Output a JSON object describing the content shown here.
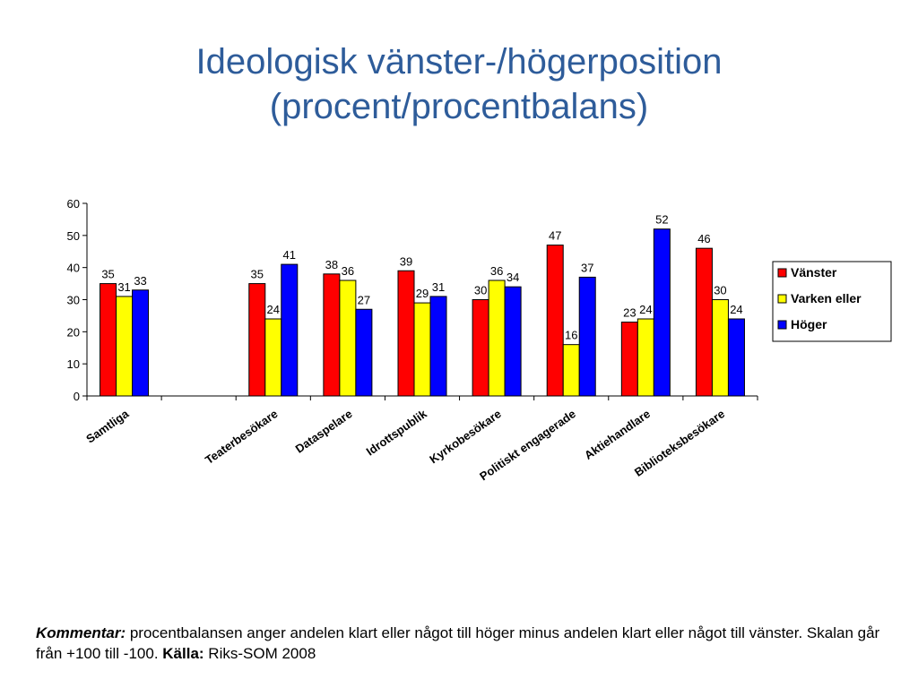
{
  "page": {
    "title_line1": "Ideologisk vänster-/högerposition",
    "title_line2": "(procent/procentbalans)"
  },
  "footer": {
    "comment_label": "Kommentar:",
    "comment_text": " procentbalansen anger andelen klart eller något till höger minus andelen klart eller något till vänster. Skalan går från +100 till -100. ",
    "source_label": "Källa:",
    "source_text": " Riks-SOM 2008"
  },
  "chart_data": {
    "type": "bar",
    "title": "",
    "xlabel": "",
    "ylabel": "",
    "ylim": [
      0,
      60
    ],
    "yticks": [
      0,
      10,
      20,
      30,
      40,
      50,
      60
    ],
    "categories": [
      "Samtliga",
      "",
      "Teaterbesökare",
      "Dataspelare",
      "Idrottspublik",
      "Kyrkobesökare",
      "Politiskt engagerade",
      "Aktiehandlare",
      "Biblioteksbesökare"
    ],
    "series": [
      {
        "name": "Vänster",
        "color": "#ff0000",
        "values": [
          35,
          null,
          35,
          38,
          39,
          30,
          47,
          23,
          46
        ]
      },
      {
        "name": "Varken eller",
        "color": "#ffff00",
        "values": [
          31,
          null,
          24,
          36,
          29,
          36,
          16,
          24,
          30
        ]
      },
      {
        "name": "Höger",
        "color": "#0000ff",
        "values": [
          33,
          null,
          41,
          27,
          31,
          34,
          37,
          52,
          24
        ]
      }
    ],
    "grid": false,
    "legend_position": "right"
  }
}
